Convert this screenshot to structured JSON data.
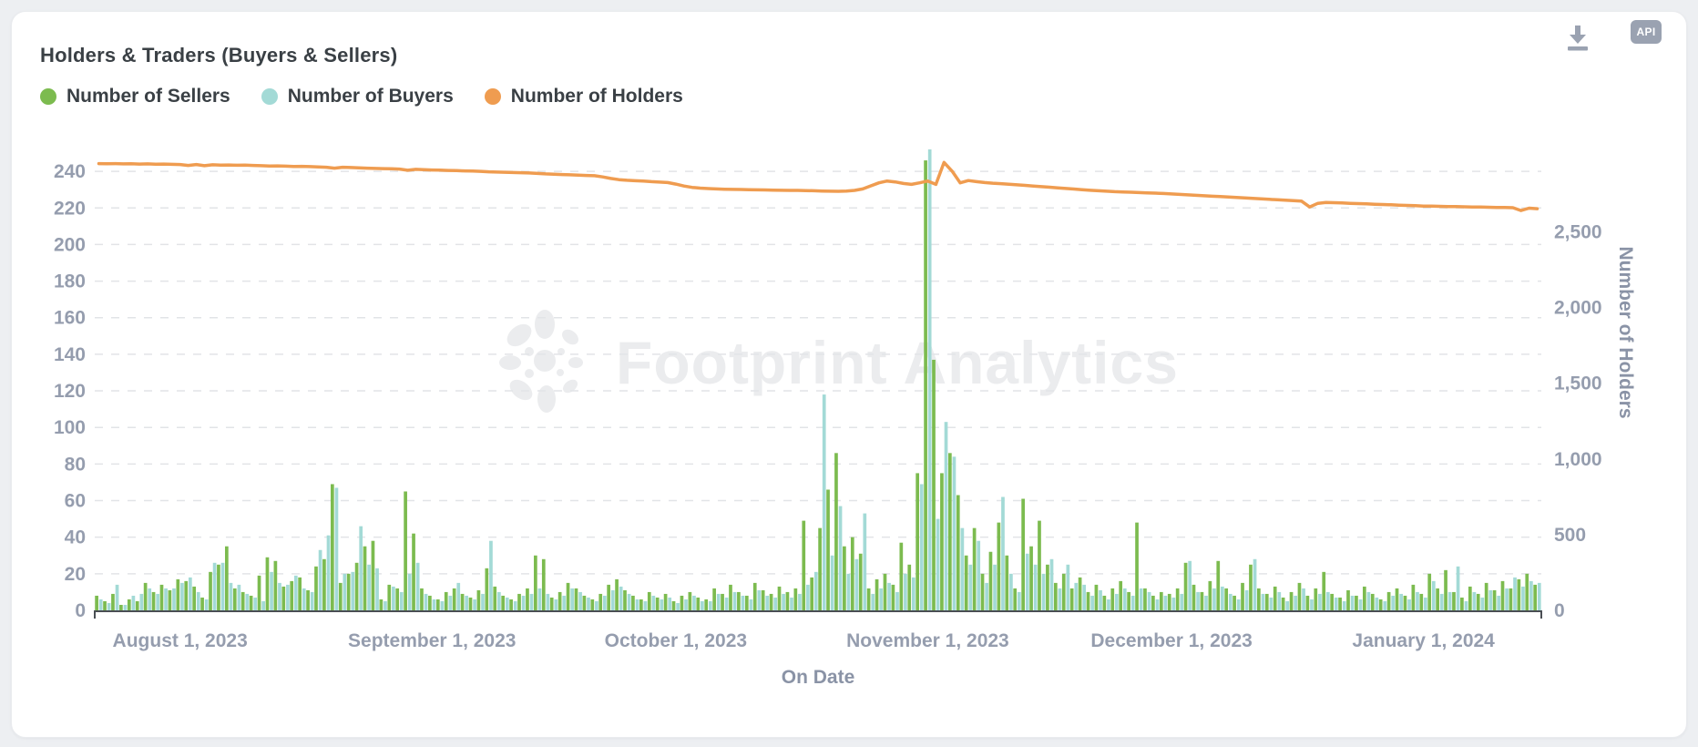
{
  "header": {
    "title": "Holders & Traders (Buyers & Sellers)"
  },
  "toolbar": {
    "api_label": "API"
  },
  "watermark": {
    "text": "Footprint Analytics"
  },
  "legend": [
    {
      "label": "Number of Sellers",
      "color": "#7cbb4f"
    },
    {
      "label": "Number of Buyers",
      "color": "#a3dad6"
    },
    {
      "label": "Number of Holders",
      "color": "#ef9c50"
    }
  ],
  "chart_data": {
    "type": "combo-bar-line",
    "x": {
      "label": "On Date",
      "start_date": "2023-07-22",
      "frequency": "daily",
      "num_points": 178,
      "tick_labels": [
        "August 1, 2023",
        "September 1, 2023",
        "October 1, 2023",
        "November 1, 2023",
        "December 1, 2023",
        "January 1, 2024"
      ],
      "tick_day_indices": [
        10,
        41,
        71,
        102,
        132,
        163
      ]
    },
    "y_left": {
      "ticks": [
        0,
        20,
        40,
        60,
        80,
        100,
        120,
        140,
        160,
        180,
        200,
        220,
        240
      ],
      "max": 255
    },
    "y_right": {
      "label": "Number of Holders",
      "ticks": [
        0,
        500,
        1000,
        1500,
        2000,
        2500
      ],
      "max": 3080
    },
    "series": [
      {
        "name": "Number of Sellers",
        "type": "bar",
        "axis": "left",
        "color": "#7cbb4f",
        "values": [
          8,
          5,
          9,
          3,
          6,
          5,
          15,
          10,
          14,
          11,
          17,
          16,
          13,
          7,
          21,
          25,
          35,
          12,
          10,
          8,
          19,
          29,
          27,
          13,
          16,
          18,
          11,
          24,
          28,
          69,
          15,
          20,
          26,
          35,
          38,
          6,
          14,
          12,
          65,
          42,
          12,
          8,
          6,
          10,
          12,
          9,
          7,
          11,
          23,
          13,
          8,
          6,
          9,
          12,
          30,
          28,
          7,
          10,
          15,
          12,
          8,
          6,
          9,
          14,
          17,
          11,
          8,
          6,
          10,
          7,
          9,
          5,
          8,
          10,
          7,
          6,
          12,
          9,
          14,
          10,
          8,
          15,
          11,
          9,
          13,
          10,
          12,
          49,
          18,
          45,
          66,
          86,
          35,
          40,
          31,
          12,
          17,
          20,
          14,
          37,
          25,
          75,
          246,
          137,
          75,
          86,
          63,
          30,
          45,
          20,
          32,
          48,
          30,
          12,
          61,
          35,
          49,
          25,
          15,
          20,
          12,
          18,
          10,
          14,
          8,
          12,
          16,
          10,
          48,
          12,
          8,
          10,
          9,
          12,
          26,
          14,
          10,
          16,
          27,
          12,
          8,
          15,
          25,
          12,
          9,
          13,
          7,
          10,
          15,
          8,
          12,
          21,
          9,
          7,
          11,
          8,
          13,
          9,
          6,
          10,
          12,
          8,
          14,
          9,
          20,
          12,
          22,
          10,
          7,
          13,
          9,
          15,
          11,
          16,
          12,
          17,
          20,
          14
        ]
      },
      {
        "name": "Number of Buyers",
        "type": "bar",
        "axis": "left",
        "color": "#a3dad6",
        "values": [
          6,
          4,
          14,
          3,
          8,
          9,
          12,
          9,
          12,
          12,
          15,
          18,
          10,
          6,
          26,
          26,
          15,
          14,
          9,
          7,
          5,
          21,
          15,
          14,
          19,
          12,
          10,
          33,
          41,
          67,
          20,
          21,
          46,
          25,
          23,
          5,
          13,
          10,
          20,
          26,
          9,
          6,
          5,
          8,
          15,
          8,
          6,
          9,
          38,
          10,
          7,
          5,
          8,
          9,
          12,
          9,
          6,
          8,
          12,
          10,
          7,
          5,
          8,
          11,
          13,
          9,
          6,
          5,
          8,
          6,
          7,
          4,
          6,
          8,
          5,
          5,
          9,
          7,
          10,
          8,
          6,
          11,
          8,
          7,
          9,
          7,
          9,
          14,
          21,
          118,
          30,
          57,
          20,
          28,
          53,
          9,
          12,
          15,
          10,
          20,
          18,
          69,
          252,
          50,
          103,
          84,
          45,
          25,
          38,
          15,
          25,
          62,
          20,
          10,
          31,
          25,
          20,
          28,
          12,
          25,
          15,
          14,
          8,
          11,
          6,
          9,
          12,
          8,
          12,
          10,
          6,
          8,
          7,
          9,
          27,
          10,
          8,
          12,
          13,
          9,
          6,
          11,
          28,
          9,
          7,
          10,
          5,
          8,
          12,
          6,
          9,
          10,
          7,
          5,
          8,
          6,
          10,
          7,
          5,
          8,
          9,
          6,
          10,
          7,
          16,
          9,
          10,
          24,
          5,
          10,
          7,
          11,
          8,
          12,
          18,
          13,
          16,
          15
        ]
      },
      {
        "name": "Number of Holders",
        "type": "line",
        "axis": "right",
        "color": "#ef9c50",
        "values": [
          2950,
          2949,
          2950,
          2948,
          2949,
          2947,
          2948,
          2946,
          2947,
          2945,
          2944,
          2938,
          2944,
          2936,
          2942,
          2940,
          2941,
          2939,
          2940,
          2938,
          2936,
          2934,
          2935,
          2933,
          2931,
          2932,
          2930,
          2928,
          2926,
          2920,
          2926,
          2924,
          2922,
          2920,
          2918,
          2917,
          2916,
          2914,
          2906,
          2912,
          2910,
          2908,
          2907,
          2905,
          2904,
          2902,
          2901,
          2899,
          2896,
          2894,
          2893,
          2891,
          2890,
          2888,
          2885,
          2882,
          2880,
          2878,
          2876,
          2874,
          2872,
          2870,
          2862,
          2852,
          2844,
          2840,
          2837,
          2835,
          2831,
          2828,
          2825,
          2815,
          2802,
          2793,
          2788,
          2785,
          2783,
          2781,
          2780,
          2779,
          2778,
          2777,
          2776,
          2775,
          2774,
          2773,
          2773,
          2772,
          2771,
          2769,
          2768,
          2767,
          2769,
          2773,
          2783,
          2803,
          2823,
          2835,
          2829,
          2819,
          2813,
          2823,
          2835,
          2813,
          2958,
          2900,
          2823,
          2838,
          2831,
          2825,
          2821,
          2818,
          2814,
          2810,
          2806,
          2802,
          2798,
          2794,
          2790,
          2786,
          2782,
          2778,
          2774,
          2771,
          2768,
          2765,
          2763,
          2761,
          2759,
          2757,
          2755,
          2753,
          2750,
          2747,
          2744,
          2741,
          2738,
          2735,
          2732,
          2729,
          2726,
          2723,
          2720,
          2717,
          2714,
          2711,
          2708,
          2705,
          2702,
          2664,
          2688,
          2694,
          2692,
          2690,
          2688,
          2686,
          2684,
          2682,
          2680,
          2678,
          2676,
          2674,
          2672,
          2670,
          2669,
          2668,
          2667,
          2666,
          2665,
          2664,
          2663,
          2662,
          2661,
          2660,
          2659,
          2640,
          2656,
          2652
        ]
      }
    ]
  }
}
